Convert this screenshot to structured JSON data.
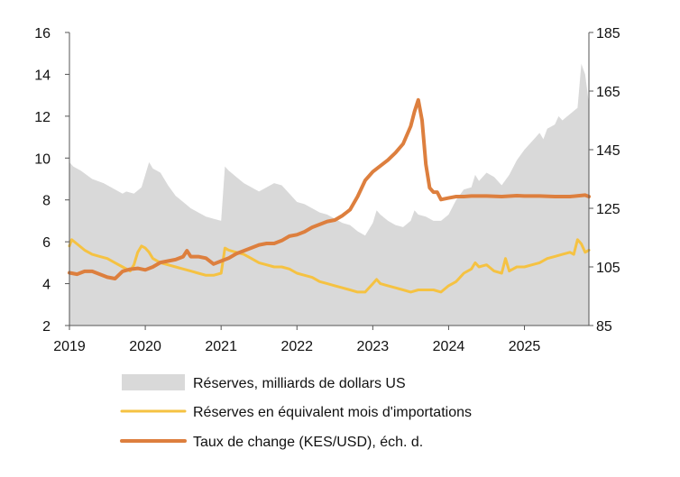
{
  "chart_data": {
    "type": "area",
    "x_axis": {
      "range": [
        2019.0,
        2025.85
      ],
      "tick_values": [
        2019,
        2020,
        2021,
        2022,
        2023,
        2024,
        2025
      ],
      "tick_labels": [
        "2019",
        "2020",
        "2021",
        "2022",
        "2023",
        "2024",
        "2025"
      ]
    },
    "y_left": {
      "range": [
        2,
        16
      ],
      "ticks": [
        2,
        4,
        6,
        8,
        10,
        12,
        14,
        16
      ]
    },
    "y_right": {
      "range": [
        85,
        185
      ],
      "ticks": [
        85,
        105,
        125,
        145,
        165,
        185
      ]
    },
    "grid": false,
    "legend_position": "bottom",
    "series": [
      {
        "name": "Réserves, milliards de dollars US",
        "kind": "area",
        "axis": "left",
        "color": "#d9d9d9",
        "points": [
          [
            2019.0,
            9.8
          ],
          [
            2019.05,
            9.6
          ],
          [
            2019.15,
            9.4
          ],
          [
            2019.3,
            9.0
          ],
          [
            2019.45,
            8.8
          ],
          [
            2019.6,
            8.5
          ],
          [
            2019.7,
            8.3
          ],
          [
            2019.75,
            8.4
          ],
          [
            2019.85,
            8.3
          ],
          [
            2019.95,
            8.6
          ],
          [
            2020.0,
            9.2
          ],
          [
            2020.05,
            9.8
          ],
          [
            2020.1,
            9.5
          ],
          [
            2020.2,
            9.3
          ],
          [
            2020.3,
            8.7
          ],
          [
            2020.4,
            8.2
          ],
          [
            2020.5,
            7.9
          ],
          [
            2020.6,
            7.6
          ],
          [
            2020.7,
            7.4
          ],
          [
            2020.8,
            7.2
          ],
          [
            2020.9,
            7.1
          ],
          [
            2021.0,
            7.0
          ],
          [
            2021.05,
            9.6
          ],
          [
            2021.1,
            9.4
          ],
          [
            2021.2,
            9.1
          ],
          [
            2021.3,
            8.8
          ],
          [
            2021.4,
            8.6
          ],
          [
            2021.5,
            8.4
          ],
          [
            2021.6,
            8.6
          ],
          [
            2021.7,
            8.8
          ],
          [
            2021.8,
            8.7
          ],
          [
            2021.9,
            8.3
          ],
          [
            2022.0,
            7.9
          ],
          [
            2022.1,
            7.8
          ],
          [
            2022.2,
            7.6
          ],
          [
            2022.3,
            7.4
          ],
          [
            2022.4,
            7.3
          ],
          [
            2022.5,
            7.1
          ],
          [
            2022.6,
            6.9
          ],
          [
            2022.7,
            6.8
          ],
          [
            2022.8,
            6.5
          ],
          [
            2022.9,
            6.3
          ],
          [
            2023.0,
            6.9
          ],
          [
            2023.05,
            7.5
          ],
          [
            2023.1,
            7.3
          ],
          [
            2023.2,
            7.0
          ],
          [
            2023.3,
            6.8
          ],
          [
            2023.4,
            6.7
          ],
          [
            2023.5,
            7.0
          ],
          [
            2023.55,
            7.5
          ],
          [
            2023.6,
            7.3
          ],
          [
            2023.7,
            7.2
          ],
          [
            2023.8,
            7.0
          ],
          [
            2023.9,
            7.0
          ],
          [
            2024.0,
            7.3
          ],
          [
            2024.1,
            8.0
          ],
          [
            2024.2,
            8.5
          ],
          [
            2024.3,
            8.6
          ],
          [
            2024.35,
            9.2
          ],
          [
            2024.4,
            8.9
          ],
          [
            2024.5,
            9.3
          ],
          [
            2024.6,
            9.1
          ],
          [
            2024.7,
            8.7
          ],
          [
            2024.8,
            9.2
          ],
          [
            2024.9,
            9.9
          ],
          [
            2025.0,
            10.4
          ],
          [
            2025.1,
            10.8
          ],
          [
            2025.2,
            11.2
          ],
          [
            2025.25,
            10.9
          ],
          [
            2025.3,
            11.4
          ],
          [
            2025.4,
            11.6
          ],
          [
            2025.45,
            12.0
          ],
          [
            2025.5,
            11.8
          ],
          [
            2025.6,
            12.1
          ],
          [
            2025.7,
            12.4
          ],
          [
            2025.75,
            14.5
          ],
          [
            2025.8,
            14.0
          ],
          [
            2025.85,
            12.6
          ]
        ]
      },
      {
        "name": "Réserves en équivalent mois d'importations",
        "kind": "line",
        "axis": "left",
        "color": "#f5c242",
        "points": [
          [
            2019.0,
            5.8
          ],
          [
            2019.03,
            6.1
          ],
          [
            2019.1,
            5.9
          ],
          [
            2019.2,
            5.6
          ],
          [
            2019.3,
            5.4
          ],
          [
            2019.4,
            5.3
          ],
          [
            2019.5,
            5.2
          ],
          [
            2019.6,
            5.0
          ],
          [
            2019.7,
            4.8
          ],
          [
            2019.8,
            4.6
          ],
          [
            2019.85,
            4.9
          ],
          [
            2019.9,
            5.5
          ],
          [
            2019.95,
            5.8
          ],
          [
            2020.0,
            5.7
          ],
          [
            2020.05,
            5.5
          ],
          [
            2020.1,
            5.2
          ],
          [
            2020.2,
            5.0
          ],
          [
            2020.3,
            4.9
          ],
          [
            2020.4,
            4.8
          ],
          [
            2020.5,
            4.7
          ],
          [
            2020.6,
            4.6
          ],
          [
            2020.7,
            4.5
          ],
          [
            2020.8,
            4.4
          ],
          [
            2020.9,
            4.4
          ],
          [
            2021.0,
            4.5
          ],
          [
            2021.05,
            5.7
          ],
          [
            2021.1,
            5.6
          ],
          [
            2021.2,
            5.5
          ],
          [
            2021.3,
            5.4
          ],
          [
            2021.4,
            5.2
          ],
          [
            2021.5,
            5.0
          ],
          [
            2021.6,
            4.9
          ],
          [
            2021.7,
            4.8
          ],
          [
            2021.8,
            4.8
          ],
          [
            2021.9,
            4.7
          ],
          [
            2022.0,
            4.5
          ],
          [
            2022.1,
            4.4
          ],
          [
            2022.2,
            4.3
          ],
          [
            2022.3,
            4.1
          ],
          [
            2022.4,
            4.0
          ],
          [
            2022.5,
            3.9
          ],
          [
            2022.6,
            3.8
          ],
          [
            2022.7,
            3.7
          ],
          [
            2022.8,
            3.6
          ],
          [
            2022.9,
            3.6
          ],
          [
            2023.0,
            4.0
          ],
          [
            2023.05,
            4.2
          ],
          [
            2023.1,
            4.0
          ],
          [
            2023.2,
            3.9
          ],
          [
            2023.3,
            3.8
          ],
          [
            2023.4,
            3.7
          ],
          [
            2023.5,
            3.6
          ],
          [
            2023.6,
            3.7
          ],
          [
            2023.7,
            3.7
          ],
          [
            2023.8,
            3.7
          ],
          [
            2023.9,
            3.6
          ],
          [
            2024.0,
            3.9
          ],
          [
            2024.1,
            4.1
          ],
          [
            2024.2,
            4.5
          ],
          [
            2024.3,
            4.7
          ],
          [
            2024.35,
            5.0
          ],
          [
            2024.4,
            4.8
          ],
          [
            2024.5,
            4.9
          ],
          [
            2024.6,
            4.6
          ],
          [
            2024.7,
            4.5
          ],
          [
            2024.75,
            5.2
          ],
          [
            2024.8,
            4.6
          ],
          [
            2024.9,
            4.8
          ],
          [
            2025.0,
            4.8
          ],
          [
            2025.1,
            4.9
          ],
          [
            2025.2,
            5.0
          ],
          [
            2025.3,
            5.2
          ],
          [
            2025.4,
            5.3
          ],
          [
            2025.5,
            5.4
          ],
          [
            2025.6,
            5.5
          ],
          [
            2025.65,
            5.4
          ],
          [
            2025.7,
            6.1
          ],
          [
            2025.75,
            5.9
          ],
          [
            2025.8,
            5.5
          ],
          [
            2025.85,
            5.6
          ]
        ]
      },
      {
        "name": "Taux de change (KES/USD), éch. d.",
        "kind": "line",
        "axis": "right",
        "color": "#dd7f3e",
        "points": [
          [
            2019.0,
            103.0
          ],
          [
            2019.1,
            102.5
          ],
          [
            2019.2,
            103.5
          ],
          [
            2019.3,
            103.5
          ],
          [
            2019.4,
            102.5
          ],
          [
            2019.5,
            101.5
          ],
          [
            2019.6,
            101.0
          ],
          [
            2019.7,
            103.5
          ],
          [
            2019.8,
            104.2
          ],
          [
            2019.9,
            104.5
          ],
          [
            2020.0,
            104.0
          ],
          [
            2020.1,
            105.0
          ],
          [
            2020.2,
            106.5
          ],
          [
            2020.3,
            107.0
          ],
          [
            2020.4,
            107.5
          ],
          [
            2020.5,
            108.5
          ],
          [
            2020.55,
            110.5
          ],
          [
            2020.6,
            108.5
          ],
          [
            2020.7,
            108.5
          ],
          [
            2020.8,
            108.0
          ],
          [
            2020.9,
            106.0
          ],
          [
            2021.0,
            107.0
          ],
          [
            2021.1,
            108.0
          ],
          [
            2021.2,
            109.5
          ],
          [
            2021.3,
            110.5
          ],
          [
            2021.4,
            111.5
          ],
          [
            2021.5,
            112.5
          ],
          [
            2021.6,
            113.0
          ],
          [
            2021.7,
            113.0
          ],
          [
            2021.8,
            114.0
          ],
          [
            2021.9,
            115.5
          ],
          [
            2022.0,
            116.0
          ],
          [
            2022.1,
            117.0
          ],
          [
            2022.2,
            118.5
          ],
          [
            2022.3,
            119.5
          ],
          [
            2022.4,
            120.5
          ],
          [
            2022.5,
            121.0
          ],
          [
            2022.6,
            122.5
          ],
          [
            2022.7,
            124.5
          ],
          [
            2022.8,
            129.0
          ],
          [
            2022.9,
            134.5
          ],
          [
            2023.0,
            137.5
          ],
          [
            2023.1,
            139.5
          ],
          [
            2023.2,
            141.5
          ],
          [
            2023.3,
            144.0
          ],
          [
            2023.4,
            147.0
          ],
          [
            2023.5,
            153.0
          ],
          [
            2023.55,
            158.0
          ],
          [
            2023.6,
            162.0
          ],
          [
            2023.65,
            155.0
          ],
          [
            2023.7,
            140.0
          ],
          [
            2023.75,
            132.0
          ],
          [
            2023.8,
            130.5
          ],
          [
            2023.85,
            130.5
          ],
          [
            2023.9,
            128.0
          ],
          [
            2024.0,
            128.5
          ],
          [
            2024.1,
            129.0
          ],
          [
            2024.2,
            129.0
          ],
          [
            2024.3,
            129.2
          ],
          [
            2024.5,
            129.2
          ],
          [
            2024.7,
            129.0
          ],
          [
            2024.9,
            129.3
          ],
          [
            2025.0,
            129.2
          ],
          [
            2025.2,
            129.2
          ],
          [
            2025.4,
            129.0
          ],
          [
            2025.6,
            129.0
          ],
          [
            2025.8,
            129.5
          ],
          [
            2025.85,
            129.0
          ]
        ]
      }
    ]
  }
}
